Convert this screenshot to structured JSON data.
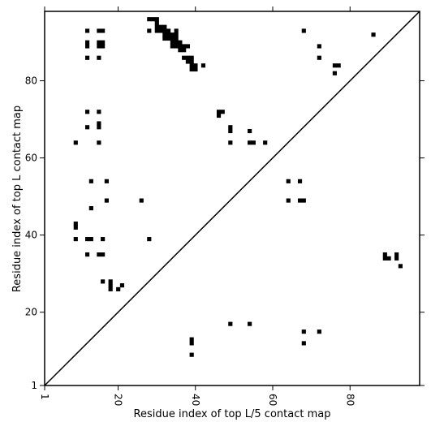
{
  "chart_data": {
    "type": "scatter",
    "marker": "square",
    "title": "",
    "xlabel": "Residue index of top L/5 contact map",
    "ylabel": "Residue index of top L contact map",
    "xlim": [
      1,
      98
    ],
    "ylim": [
      1,
      98
    ],
    "x_ticks": [
      1,
      20,
      40,
      60,
      80
    ],
    "y_ticks": [
      1,
      20,
      40,
      60,
      80
    ],
    "x_tick_labels": [
      "1",
      "20",
      "40",
      "60",
      "80"
    ],
    "y_tick_labels": [
      "1",
      "20",
      "40",
      "60",
      "80"
    ],
    "diagonal_line": {
      "from": [
        1,
        1
      ],
      "to": [
        98,
        98
      ],
      "color": "#000000"
    },
    "grid": false,
    "colors": {
      "marker": "#000000",
      "background": "#ffffff",
      "axes": "#000000"
    },
    "series": [
      {
        "points": [
          [
            12,
            93
          ],
          [
            15,
            93
          ],
          [
            16,
            93
          ],
          [
            12,
            90
          ],
          [
            12,
            89
          ],
          [
            15,
            90
          ],
          [
            16,
            90
          ],
          [
            15,
            89
          ],
          [
            16,
            89
          ],
          [
            12,
            86
          ],
          [
            15,
            86
          ],
          [
            28,
            96
          ],
          [
            29,
            96
          ],
          [
            30,
            96
          ],
          [
            30,
            95
          ],
          [
            28,
            93
          ],
          [
            30,
            94
          ],
          [
            31,
            94
          ],
          [
            32,
            94
          ],
          [
            30,
            93
          ],
          [
            31,
            93
          ],
          [
            32,
            93
          ],
          [
            33,
            93
          ],
          [
            32,
            92
          ],
          [
            33,
            92
          ],
          [
            34,
            92
          ],
          [
            35,
            93
          ],
          [
            32,
            91
          ],
          [
            33,
            91
          ],
          [
            34,
            91
          ],
          [
            35,
            91
          ],
          [
            35,
            92
          ],
          [
            34,
            90
          ],
          [
            35,
            90
          ],
          [
            36,
            90
          ],
          [
            34,
            89
          ],
          [
            35,
            89
          ],
          [
            36,
            89
          ],
          [
            37,
            89
          ],
          [
            38,
            89
          ],
          [
            36,
            88
          ],
          [
            37,
            88
          ],
          [
            37,
            86
          ],
          [
            38,
            86
          ],
          [
            39,
            86
          ],
          [
            38,
            85
          ],
          [
            39,
            85
          ],
          [
            39,
            84
          ],
          [
            40,
            84
          ],
          [
            39,
            83
          ],
          [
            40,
            83
          ],
          [
            42,
            84
          ],
          [
            68,
            93
          ],
          [
            72,
            89
          ],
          [
            72,
            86
          ],
          [
            76,
            84
          ],
          [
            77,
            84
          ],
          [
            76,
            82
          ],
          [
            86,
            92
          ],
          [
            12,
            72
          ],
          [
            15,
            72
          ],
          [
            12,
            68
          ],
          [
            15,
            69
          ],
          [
            15,
            68
          ],
          [
            9,
            64
          ],
          [
            15,
            64
          ],
          [
            46,
            72
          ],
          [
            47,
            72
          ],
          [
            46,
            71
          ],
          [
            49,
            68
          ],
          [
            49,
            67
          ],
          [
            49,
            64
          ],
          [
            54,
            67
          ],
          [
            54,
            64
          ],
          [
            55,
            64
          ],
          [
            58,
            64
          ],
          [
            13,
            54
          ],
          [
            17,
            54
          ],
          [
            17,
            49
          ],
          [
            26,
            49
          ],
          [
            13,
            47
          ],
          [
            64,
            54
          ],
          [
            67,
            54
          ],
          [
            64,
            49
          ],
          [
            67,
            49
          ],
          [
            68,
            49
          ],
          [
            9,
            43
          ],
          [
            9,
            42
          ],
          [
            9,
            39
          ],
          [
            12,
            39
          ],
          [
            13,
            39
          ],
          [
            16,
            39
          ],
          [
            28,
            39
          ],
          [
            12,
            35
          ],
          [
            15,
            35
          ],
          [
            16,
            35
          ],
          [
            89,
            35
          ],
          [
            92,
            35
          ],
          [
            89,
            34
          ],
          [
            90,
            34
          ],
          [
            92,
            34
          ],
          [
            93,
            32
          ],
          [
            16,
            28
          ],
          [
            18,
            28
          ],
          [
            18,
            27
          ],
          [
            21,
            27
          ],
          [
            18,
            26
          ],
          [
            20,
            26
          ],
          [
            49,
            17
          ],
          [
            54,
            17
          ],
          [
            39,
            13
          ],
          [
            39,
            12
          ],
          [
            68,
            15
          ],
          [
            72,
            15
          ],
          [
            68,
            12
          ],
          [
            39,
            9
          ]
        ]
      }
    ]
  }
}
